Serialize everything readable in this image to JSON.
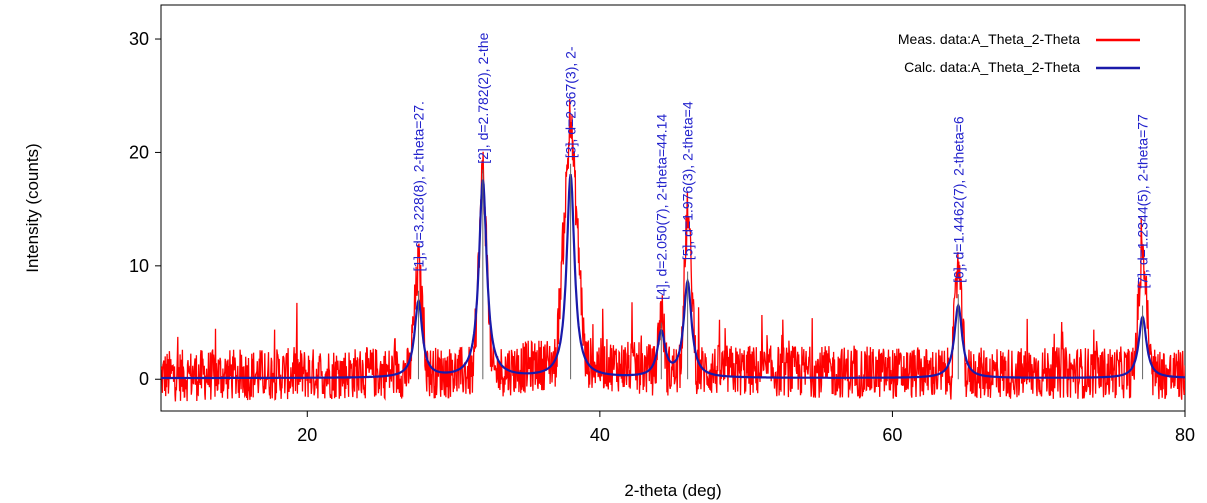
{
  "chart_data": {
    "type": "line",
    "xlabel": "2-theta (deg)",
    "ylabel": "Intensity (counts)",
    "xlim": [
      10,
      80
    ],
    "ylim": [
      -2.8,
      33
    ],
    "x_ticks": [
      20,
      40,
      60,
      80
    ],
    "y_ticks": [
      0,
      10,
      20,
      30
    ],
    "grid": false,
    "legend_position": "top-right",
    "series": [
      {
        "name": "Meas. data:A_Theta_2-Theta",
        "color": "#ff0000",
        "kind": "noisy-measured",
        "noise_amplitude": 2.3,
        "points": [
          [
            10,
            0.3
          ],
          [
            27.0,
            0.6
          ],
          [
            27.6,
            10.5
          ],
          [
            28.2,
            0.6
          ],
          [
            31.4,
            0.6
          ],
          [
            32.0,
            19.5
          ],
          [
            32.6,
            0.6
          ],
          [
            37.0,
            1.5
          ],
          [
            38.0,
            23.5
          ],
          [
            39.0,
            1.5
          ],
          [
            43.8,
            0.8
          ],
          [
            44.2,
            6.5
          ],
          [
            44.6,
            0.8
          ],
          [
            45.5,
            0.8
          ],
          [
            46.0,
            15.5
          ],
          [
            46.6,
            0.8
          ],
          [
            64.0,
            0.5
          ],
          [
            64.5,
            10.5
          ],
          [
            65.0,
            0.5
          ],
          [
            76.5,
            0.6
          ],
          [
            77.1,
            12.0
          ],
          [
            77.7,
            0.6
          ],
          [
            80,
            0.3
          ]
        ]
      },
      {
        "name": "Calc. data:A_Theta_2-Theta",
        "color": "#1a1aaa",
        "kind": "fitted-profile",
        "baseline": 0.1,
        "peaks": [
          {
            "x": 27.6,
            "y": 6.8
          },
          {
            "x": 32.0,
            "y": 17.5
          },
          {
            "x": 38.0,
            "y": 18.0
          },
          {
            "x": 44.2,
            "y": 4.0
          },
          {
            "x": 46.0,
            "y": 8.5
          },
          {
            "x": 64.5,
            "y": 6.5
          },
          {
            "x": 77.1,
            "y": 5.5
          }
        ]
      }
    ],
    "peak_labels": [
      {
        "x": 27.6,
        "y_bottom": 9.5,
        "text": "[1], d=3.228(8), 2-theta=27."
      },
      {
        "x": 32.0,
        "y_bottom": 19.0,
        "text": "[2], d=2.782(2), 2-the"
      },
      {
        "x": 38.0,
        "y_bottom": 19.5,
        "text": "[3], d=2.367(3), 2-"
      },
      {
        "x": 44.2,
        "y_bottom": 7.0,
        "text": "[4], d=2.050(7), 2-theta=44.14"
      },
      {
        "x": 46.0,
        "y_bottom": 10.5,
        "text": "[5], d=1.976(3), 2-theta=4"
      },
      {
        "x": 64.5,
        "y_bottom": 8.5,
        "text": "[6], d=1.4462(7), 2-theta=6"
      },
      {
        "x": 77.1,
        "y_bottom": 8.0,
        "text": "[7], d=1.2344(5), 2-theta=77"
      }
    ]
  }
}
